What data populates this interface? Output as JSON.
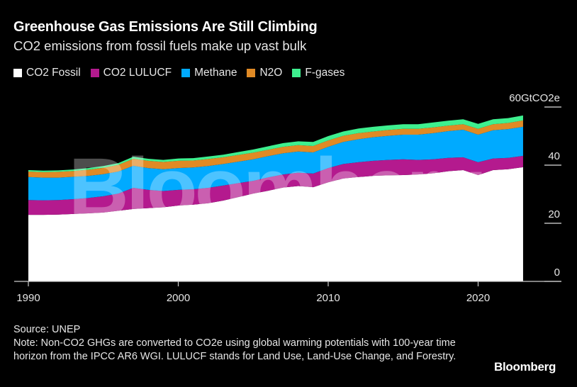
{
  "header": {
    "title": "Greenhouse Gas Emissions Are Still Climbing",
    "subtitle": "CO2 emissions from fossil fuels make up vast bulk"
  },
  "chart_data": {
    "type": "area",
    "stacked": true,
    "x": [
      1990,
      1991,
      1992,
      1993,
      1994,
      1995,
      1996,
      1997,
      1998,
      1999,
      2000,
      2001,
      2002,
      2003,
      2004,
      2005,
      2006,
      2007,
      2008,
      2009,
      2010,
      2011,
      2012,
      2013,
      2014,
      2015,
      2016,
      2017,
      2018,
      2019,
      2020,
      2021,
      2022,
      2023
    ],
    "series": [
      {
        "name": "CO2 Fossil",
        "color": "#ffffff",
        "values": [
          22.9,
          22.9,
          23.0,
          23.2,
          23.4,
          23.7,
          24.3,
          24.9,
          25.2,
          25.5,
          26.1,
          26.4,
          26.9,
          27.8,
          29.0,
          30.2,
          31.2,
          32.3,
          32.8,
          32.4,
          34.1,
          35.4,
          35.9,
          36.3,
          36.5,
          36.6,
          36.8,
          37.2,
          37.9,
          38.3,
          36.6,
          38.3,
          38.6,
          39.3
        ]
      },
      {
        "name": "CO2 LULUCF",
        "color": "#b41a8e",
        "values": [
          5.1,
          5.0,
          5.0,
          5.1,
          5.3,
          5.6,
          5.9,
          7.3,
          6.3,
          5.6,
          5.4,
          5.3,
          5.3,
          5.2,
          4.8,
          4.4,
          4.6,
          4.5,
          4.6,
          4.7,
          4.9,
          5.0,
          5.1,
          5.2,
          5.3,
          5.4,
          5.0,
          4.8,
          4.6,
          4.4,
          4.4,
          4.0,
          3.9,
          3.9
        ]
      },
      {
        "name": "Methane",
        "color": "#00aaff",
        "values": [
          7.9,
          7.8,
          7.7,
          7.7,
          7.6,
          7.6,
          7.6,
          7.6,
          7.5,
          7.5,
          7.5,
          7.5,
          7.5,
          7.4,
          7.4,
          7.4,
          7.3,
          7.3,
          7.3,
          7.3,
          7.3,
          7.6,
          7.9,
          8.1,
          8.3,
          8.5,
          8.7,
          9.0,
          9.2,
          9.5,
          9.5,
          9.7,
          9.9,
          10.0
        ]
      },
      {
        "name": "N2O",
        "color": "#e08a25",
        "values": [
          1.9,
          1.9,
          2.0,
          2.0,
          2.1,
          2.2,
          2.3,
          2.4,
          2.5,
          2.5,
          2.5,
          2.4,
          2.4,
          2.3,
          2.3,
          2.3,
          2.2,
          2.2,
          2.2,
          2.2,
          2.2,
          2.1,
          2.1,
          2.0,
          2.0,
          2.0,
          2.0,
          2.0,
          1.9,
          1.9,
          2.0,
          2.1,
          2.1,
          2.2
        ]
      },
      {
        "name": "F-gases",
        "color": "#3ef08f",
        "values": [
          0.5,
          0.5,
          0.5,
          0.5,
          0.6,
          0.6,
          0.6,
          0.7,
          0.7,
          0.7,
          0.8,
          0.8,
          0.9,
          0.9,
          1.0,
          1.1,
          1.2,
          1.3,
          1.3,
          1.4,
          1.5,
          1.5,
          1.6,
          1.6,
          1.6,
          1.6,
          1.6,
          1.7,
          1.7,
          1.7,
          1.7,
          1.7,
          1.7,
          1.7
        ]
      }
    ],
    "xticks": [
      "1990",
      "2000",
      "2010",
      "2020"
    ],
    "yticks": [
      "0",
      "20",
      "40",
      "60"
    ],
    "yunit": "GtCO2e",
    "ylim": [
      0,
      60
    ],
    "xlim": [
      1990,
      2023
    ],
    "yaxis_side": "right",
    "legend_placement": "top-left",
    "grid": false
  },
  "footer": {
    "source": "Source: UNEP",
    "note": "Note: Non-CO2 GHGs are converted to CO2e using global warming potentials with 100-year time horizon from the IPCC AR6 WGI. LULUCF stands for Land Use, Land-Use Change, and Forestry.",
    "brand": "Bloomberg"
  },
  "watermark": "Bloomberg"
}
